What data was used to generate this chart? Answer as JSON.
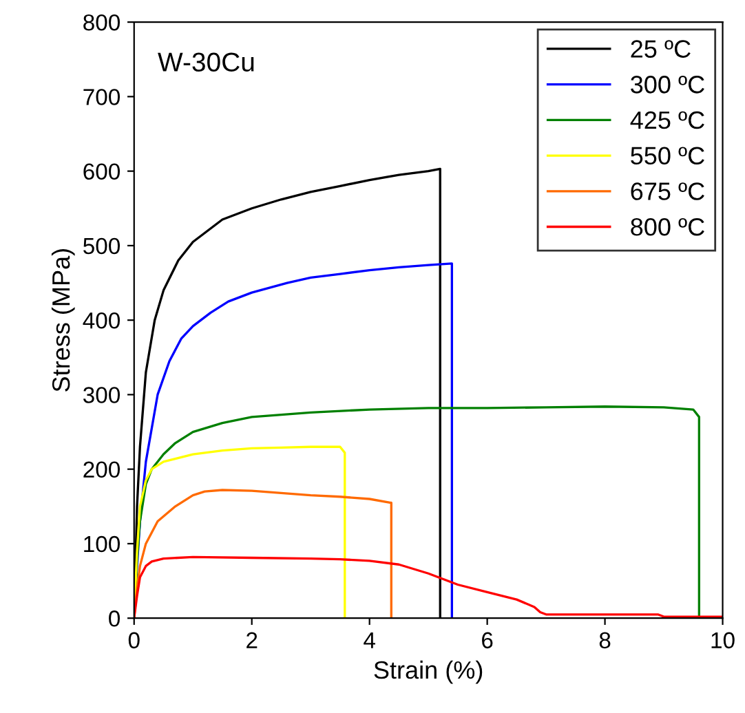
{
  "chart_data": {
    "type": "line",
    "xlabel": "Strain (%)",
    "ylabel": "Stress (MPa)",
    "xlim": [
      0,
      10
    ],
    "ylim": [
      0,
      800
    ],
    "xticks": [
      0,
      2,
      4,
      6,
      8,
      10
    ],
    "yticks": [
      0,
      100,
      200,
      300,
      400,
      500,
      600,
      700,
      800
    ],
    "grid": false,
    "legend": "top right",
    "marker": "none",
    "line_style": "solid",
    "annotations": [
      "W-30Cu"
    ],
    "series": [
      {
        "name": "25 ºC",
        "color": "#000000",
        "x": [
          0,
          0.05,
          0.1,
          0.2,
          0.35,
          0.5,
          0.75,
          1.0,
          1.5,
          2.0,
          2.5,
          3.0,
          3.5,
          4.0,
          4.5,
          5.0,
          5.2,
          5.2
        ],
        "values": [
          0,
          150,
          230,
          330,
          400,
          440,
          480,
          505,
          535,
          550,
          562,
          572,
          580,
          588,
          595,
          600,
          603,
          0
        ]
      },
      {
        "name": "300 ºC",
        "color": "#0000ff",
        "x": [
          0,
          0.05,
          0.1,
          0.2,
          0.4,
          0.6,
          0.8,
          1.0,
          1.3,
          1.6,
          2.0,
          2.6,
          3.0,
          3.5,
          4.0,
          4.5,
          5.0,
          5.4,
          5.4
        ],
        "values": [
          0,
          70,
          130,
          210,
          300,
          345,
          375,
          392,
          410,
          425,
          437,
          450,
          457,
          462,
          467,
          471,
          474,
          476,
          0
        ]
      },
      {
        "name": "425 ºC",
        "color": "#008000",
        "x": [
          0,
          0.05,
          0.1,
          0.2,
          0.3,
          0.5,
          0.7,
          1.0,
          1.5,
          2.0,
          3.0,
          4.0,
          5.0,
          6.0,
          7.0,
          8.0,
          9.0,
          9.5,
          9.6,
          9.6
        ],
        "values": [
          0,
          80,
          130,
          180,
          200,
          220,
          235,
          250,
          262,
          270,
          276,
          280,
          282,
          282,
          283,
          284,
          283,
          280,
          270,
          0
        ]
      },
      {
        "name": "550 ºC",
        "color": "#ffff00",
        "x": [
          0,
          0.05,
          0.1,
          0.2,
          0.3,
          0.5,
          1.0,
          1.5,
          2.0,
          2.5,
          3.0,
          3.5,
          3.58,
          3.58
        ],
        "values": [
          0,
          90,
          150,
          185,
          200,
          210,
          220,
          225,
          228,
          229,
          230,
          230,
          222,
          0
        ]
      },
      {
        "name": "675 ºC",
        "color": "#ff6a00",
        "x": [
          0,
          0.05,
          0.1,
          0.2,
          0.4,
          0.7,
          1.0,
          1.2,
          1.5,
          2.0,
          2.5,
          3.0,
          3.5,
          4.0,
          4.35,
          4.37,
          4.37
        ],
        "values": [
          0,
          40,
          70,
          100,
          130,
          150,
          165,
          170,
          172,
          171,
          168,
          165,
          163,
          160,
          155,
          155,
          0
        ]
      },
      {
        "name": "800 ºC",
        "color": "#ff0000",
        "x": [
          0,
          0.05,
          0.1,
          0.2,
          0.3,
          0.5,
          1.0,
          2.0,
          3.0,
          3.5,
          4.0,
          4.5,
          5.0,
          5.5,
          6.0,
          6.5,
          6.8,
          6.9,
          7.0,
          8.0,
          8.9,
          9.0,
          10.0
        ],
        "values": [
          0,
          30,
          55,
          70,
          76,
          80,
          82,
          81,
          80,
          79,
          77,
          72,
          60,
          45,
          35,
          25,
          15,
          8,
          5,
          5,
          5,
          2,
          2
        ]
      }
    ]
  }
}
